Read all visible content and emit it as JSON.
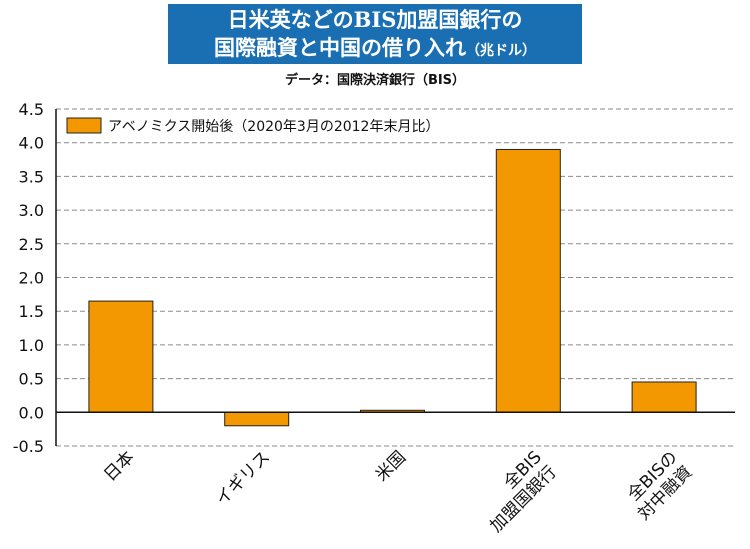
{
  "title": {
    "line1": "日米英などのBIS加盟国銀行の",
    "line2": "国際融資と中国の借り入れ",
    "unit": "（兆ドル）"
  },
  "source": "データ：国際決済銀行（BIS）",
  "colors": {
    "bar": "#f39800",
    "title_bg": "#1a6fb3"
  },
  "chart_data": {
    "type": "bar",
    "title": "日米英などのBIS加盟国銀行の国際融資と中国の借り入れ（兆ドル）",
    "categories": [
      "日本",
      "イギリス",
      "米国",
      [
        "全BIS",
        "加盟国銀行"
      ],
      [
        "全BISの",
        "対中融資"
      ]
    ],
    "series": [
      {
        "name": "アベノミクス開始後（2020年3月の2012年末月比）",
        "values": [
          1.65,
          -0.2,
          0.03,
          3.9,
          0.45
        ]
      }
    ],
    "ylim": [
      -0.5,
      4.5
    ],
    "yticks": [
      "4.5",
      "4.0",
      "3.5",
      "3.0",
      "2.5",
      "2.0",
      "1.5",
      "1.0",
      "0.5",
      "0.0",
      "-0.5"
    ],
    "grid": true,
    "legend": "top-left"
  }
}
